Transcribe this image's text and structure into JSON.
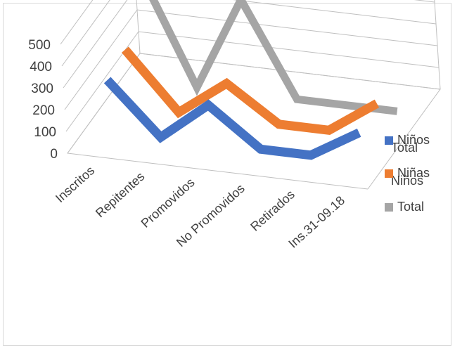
{
  "chart_data": {
    "type": "line",
    "style": "3d",
    "categories": [
      "Inscritos",
      "Repitentes",
      "Promovidos",
      "No Promovidos",
      "Retirados",
      "Ins.31-09.18"
    ],
    "series": [
      {
        "name": "Niños",
        "values": [
          235,
          0,
          175,
          0,
          0,
          130
        ],
        "color": "#4472c4"
      },
      {
        "name": "Niñas",
        "values": [
          260,
          0,
          160,
          0,
          0,
          150
        ],
        "color": "#ed7d31"
      },
      {
        "name": "Total",
        "values": [
          500,
          0,
          430,
          0,
          0,
          0
        ],
        "color": "#a5a5a5"
      }
    ],
    "side_labels": [
      "Total",
      "Niños"
    ],
    "ylim": [
      0,
      500
    ],
    "yticks": [
      0,
      100,
      200,
      300,
      400,
      500
    ],
    "grid": true,
    "legend": "right"
  }
}
